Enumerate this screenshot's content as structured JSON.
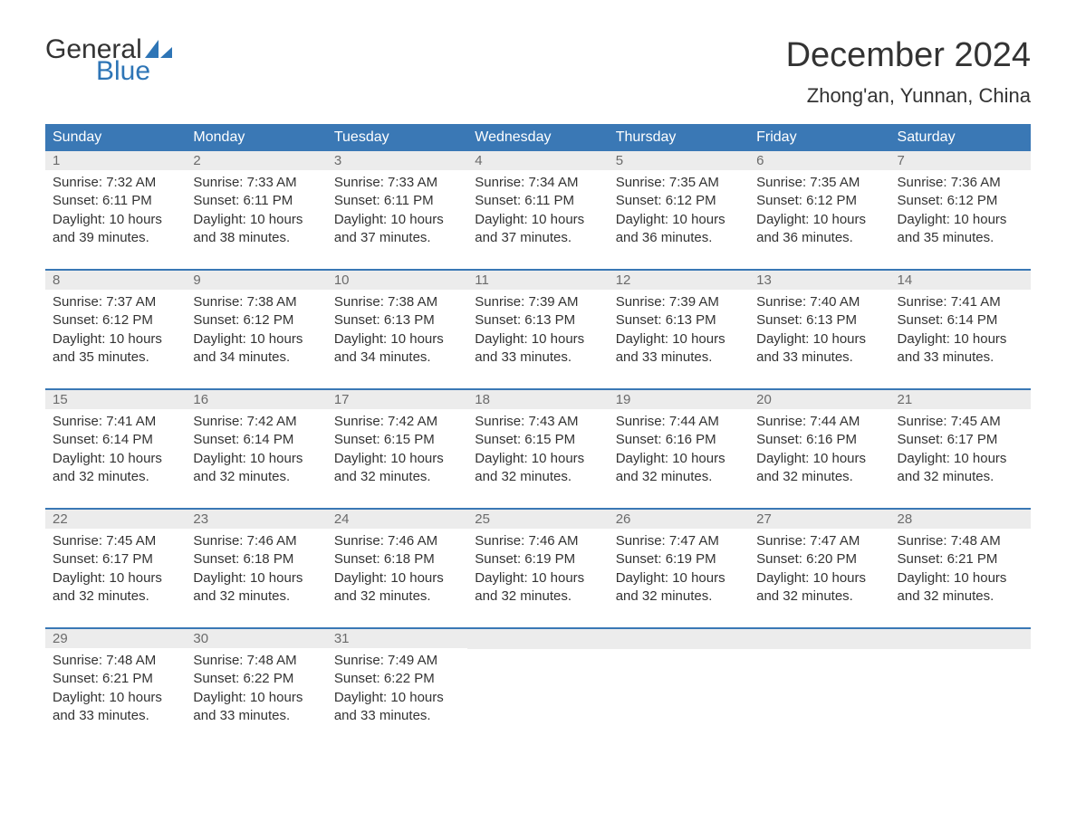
{
  "logo": {
    "word1": "General",
    "word2": "Blue"
  },
  "title": "December 2024",
  "location": "Zhong'an, Yunnan, China",
  "style": {
    "header_bg": "#3a78b5",
    "header_text": "#ffffff",
    "daynum_bg": "#ececec",
    "daynum_text": "#6b6b6b",
    "body_text": "#333333",
    "week_border": "#3a78b5",
    "logo_blue": "#2e75b6",
    "title_fontsize": 38,
    "location_fontsize": 22,
    "header_fontsize": 16,
    "cell_fontsize": 15
  },
  "weekdays": [
    "Sunday",
    "Monday",
    "Tuesday",
    "Wednesday",
    "Thursday",
    "Friday",
    "Saturday"
  ],
  "weeks": [
    [
      {
        "day": "1",
        "sunrise": "Sunrise: 7:32 AM",
        "sunset": "Sunset: 6:11 PM",
        "daylight1": "Daylight: 10 hours",
        "daylight2": "and 39 minutes."
      },
      {
        "day": "2",
        "sunrise": "Sunrise: 7:33 AM",
        "sunset": "Sunset: 6:11 PM",
        "daylight1": "Daylight: 10 hours",
        "daylight2": "and 38 minutes."
      },
      {
        "day": "3",
        "sunrise": "Sunrise: 7:33 AM",
        "sunset": "Sunset: 6:11 PM",
        "daylight1": "Daylight: 10 hours",
        "daylight2": "and 37 minutes."
      },
      {
        "day": "4",
        "sunrise": "Sunrise: 7:34 AM",
        "sunset": "Sunset: 6:11 PM",
        "daylight1": "Daylight: 10 hours",
        "daylight2": "and 37 minutes."
      },
      {
        "day": "5",
        "sunrise": "Sunrise: 7:35 AM",
        "sunset": "Sunset: 6:12 PM",
        "daylight1": "Daylight: 10 hours",
        "daylight2": "and 36 minutes."
      },
      {
        "day": "6",
        "sunrise": "Sunrise: 7:35 AM",
        "sunset": "Sunset: 6:12 PM",
        "daylight1": "Daylight: 10 hours",
        "daylight2": "and 36 minutes."
      },
      {
        "day": "7",
        "sunrise": "Sunrise: 7:36 AM",
        "sunset": "Sunset: 6:12 PM",
        "daylight1": "Daylight: 10 hours",
        "daylight2": "and 35 minutes."
      }
    ],
    [
      {
        "day": "8",
        "sunrise": "Sunrise: 7:37 AM",
        "sunset": "Sunset: 6:12 PM",
        "daylight1": "Daylight: 10 hours",
        "daylight2": "and 35 minutes."
      },
      {
        "day": "9",
        "sunrise": "Sunrise: 7:38 AM",
        "sunset": "Sunset: 6:12 PM",
        "daylight1": "Daylight: 10 hours",
        "daylight2": "and 34 minutes."
      },
      {
        "day": "10",
        "sunrise": "Sunrise: 7:38 AM",
        "sunset": "Sunset: 6:13 PM",
        "daylight1": "Daylight: 10 hours",
        "daylight2": "and 34 minutes."
      },
      {
        "day": "11",
        "sunrise": "Sunrise: 7:39 AM",
        "sunset": "Sunset: 6:13 PM",
        "daylight1": "Daylight: 10 hours",
        "daylight2": "and 33 minutes."
      },
      {
        "day": "12",
        "sunrise": "Sunrise: 7:39 AM",
        "sunset": "Sunset: 6:13 PM",
        "daylight1": "Daylight: 10 hours",
        "daylight2": "and 33 minutes."
      },
      {
        "day": "13",
        "sunrise": "Sunrise: 7:40 AM",
        "sunset": "Sunset: 6:13 PM",
        "daylight1": "Daylight: 10 hours",
        "daylight2": "and 33 minutes."
      },
      {
        "day": "14",
        "sunrise": "Sunrise: 7:41 AM",
        "sunset": "Sunset: 6:14 PM",
        "daylight1": "Daylight: 10 hours",
        "daylight2": "and 33 minutes."
      }
    ],
    [
      {
        "day": "15",
        "sunrise": "Sunrise: 7:41 AM",
        "sunset": "Sunset: 6:14 PM",
        "daylight1": "Daylight: 10 hours",
        "daylight2": "and 32 minutes."
      },
      {
        "day": "16",
        "sunrise": "Sunrise: 7:42 AM",
        "sunset": "Sunset: 6:14 PM",
        "daylight1": "Daylight: 10 hours",
        "daylight2": "and 32 minutes."
      },
      {
        "day": "17",
        "sunrise": "Sunrise: 7:42 AM",
        "sunset": "Sunset: 6:15 PM",
        "daylight1": "Daylight: 10 hours",
        "daylight2": "and 32 minutes."
      },
      {
        "day": "18",
        "sunrise": "Sunrise: 7:43 AM",
        "sunset": "Sunset: 6:15 PM",
        "daylight1": "Daylight: 10 hours",
        "daylight2": "and 32 minutes."
      },
      {
        "day": "19",
        "sunrise": "Sunrise: 7:44 AM",
        "sunset": "Sunset: 6:16 PM",
        "daylight1": "Daylight: 10 hours",
        "daylight2": "and 32 minutes."
      },
      {
        "day": "20",
        "sunrise": "Sunrise: 7:44 AM",
        "sunset": "Sunset: 6:16 PM",
        "daylight1": "Daylight: 10 hours",
        "daylight2": "and 32 minutes."
      },
      {
        "day": "21",
        "sunrise": "Sunrise: 7:45 AM",
        "sunset": "Sunset: 6:17 PM",
        "daylight1": "Daylight: 10 hours",
        "daylight2": "and 32 minutes."
      }
    ],
    [
      {
        "day": "22",
        "sunrise": "Sunrise: 7:45 AM",
        "sunset": "Sunset: 6:17 PM",
        "daylight1": "Daylight: 10 hours",
        "daylight2": "and 32 minutes."
      },
      {
        "day": "23",
        "sunrise": "Sunrise: 7:46 AM",
        "sunset": "Sunset: 6:18 PM",
        "daylight1": "Daylight: 10 hours",
        "daylight2": "and 32 minutes."
      },
      {
        "day": "24",
        "sunrise": "Sunrise: 7:46 AM",
        "sunset": "Sunset: 6:18 PM",
        "daylight1": "Daylight: 10 hours",
        "daylight2": "and 32 minutes."
      },
      {
        "day": "25",
        "sunrise": "Sunrise: 7:46 AM",
        "sunset": "Sunset: 6:19 PM",
        "daylight1": "Daylight: 10 hours",
        "daylight2": "and 32 minutes."
      },
      {
        "day": "26",
        "sunrise": "Sunrise: 7:47 AM",
        "sunset": "Sunset: 6:19 PM",
        "daylight1": "Daylight: 10 hours",
        "daylight2": "and 32 minutes."
      },
      {
        "day": "27",
        "sunrise": "Sunrise: 7:47 AM",
        "sunset": "Sunset: 6:20 PM",
        "daylight1": "Daylight: 10 hours",
        "daylight2": "and 32 minutes."
      },
      {
        "day": "28",
        "sunrise": "Sunrise: 7:48 AM",
        "sunset": "Sunset: 6:21 PM",
        "daylight1": "Daylight: 10 hours",
        "daylight2": "and 32 minutes."
      }
    ],
    [
      {
        "day": "29",
        "sunrise": "Sunrise: 7:48 AM",
        "sunset": "Sunset: 6:21 PM",
        "daylight1": "Daylight: 10 hours",
        "daylight2": "and 33 minutes."
      },
      {
        "day": "30",
        "sunrise": "Sunrise: 7:48 AM",
        "sunset": "Sunset: 6:22 PM",
        "daylight1": "Daylight: 10 hours",
        "daylight2": "and 33 minutes."
      },
      {
        "day": "31",
        "sunrise": "Sunrise: 7:49 AM",
        "sunset": "Sunset: 6:22 PM",
        "daylight1": "Daylight: 10 hours",
        "daylight2": "and 33 minutes."
      },
      null,
      null,
      null,
      null
    ]
  ]
}
